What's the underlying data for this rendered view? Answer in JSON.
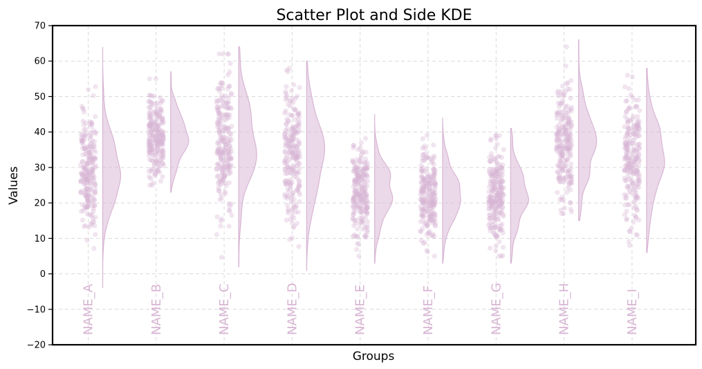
{
  "chart_data": {
    "type": "scatter",
    "title": "Scatter Plot and Side KDE",
    "xlabel": "Groups",
    "ylabel": "Values",
    "ylim": [
      -20,
      70
    ],
    "yticks": [
      -20,
      -10,
      0,
      10,
      20,
      30,
      40,
      50,
      60,
      70
    ],
    "grid": true,
    "color": "#d8b4d4",
    "categories": [
      "NAME_A",
      "NAME_B",
      "NAME_C",
      "NAME_D",
      "NAME_E",
      "NAME_F",
      "NAME_G",
      "NAME_H",
      "NAME_I"
    ],
    "groups": [
      {
        "name": "NAME_A",
        "mean": 29,
        "sd": 9.0,
        "min": -4,
        "max": 64
      },
      {
        "name": "NAME_B",
        "mean": 39,
        "sd": 5.5,
        "min": 23,
        "max": 57
      },
      {
        "name": "NAME_C",
        "mean": 36,
        "sd": 11.0,
        "min": 2,
        "max": 64
      },
      {
        "name": "NAME_D",
        "mean": 32,
        "sd": 10.5,
        "min": 1,
        "max": 60
      },
      {
        "name": "NAME_E",
        "mean": 23,
        "sd": 6.5,
        "min": 3,
        "max": 45
      },
      {
        "name": "NAME_F",
        "mean": 22,
        "sd": 6.5,
        "min": 3,
        "max": 44
      },
      {
        "name": "NAME_G",
        "mean": 22,
        "sd": 6.5,
        "min": 3,
        "max": 41
      },
      {
        "name": "NAME_H",
        "mean": 38,
        "sd": 8.0,
        "min": 15,
        "max": 66
      },
      {
        "name": "NAME_I",
        "mean": 32,
        "sd": 9.0,
        "min": 6,
        "max": 58
      }
    ]
  }
}
